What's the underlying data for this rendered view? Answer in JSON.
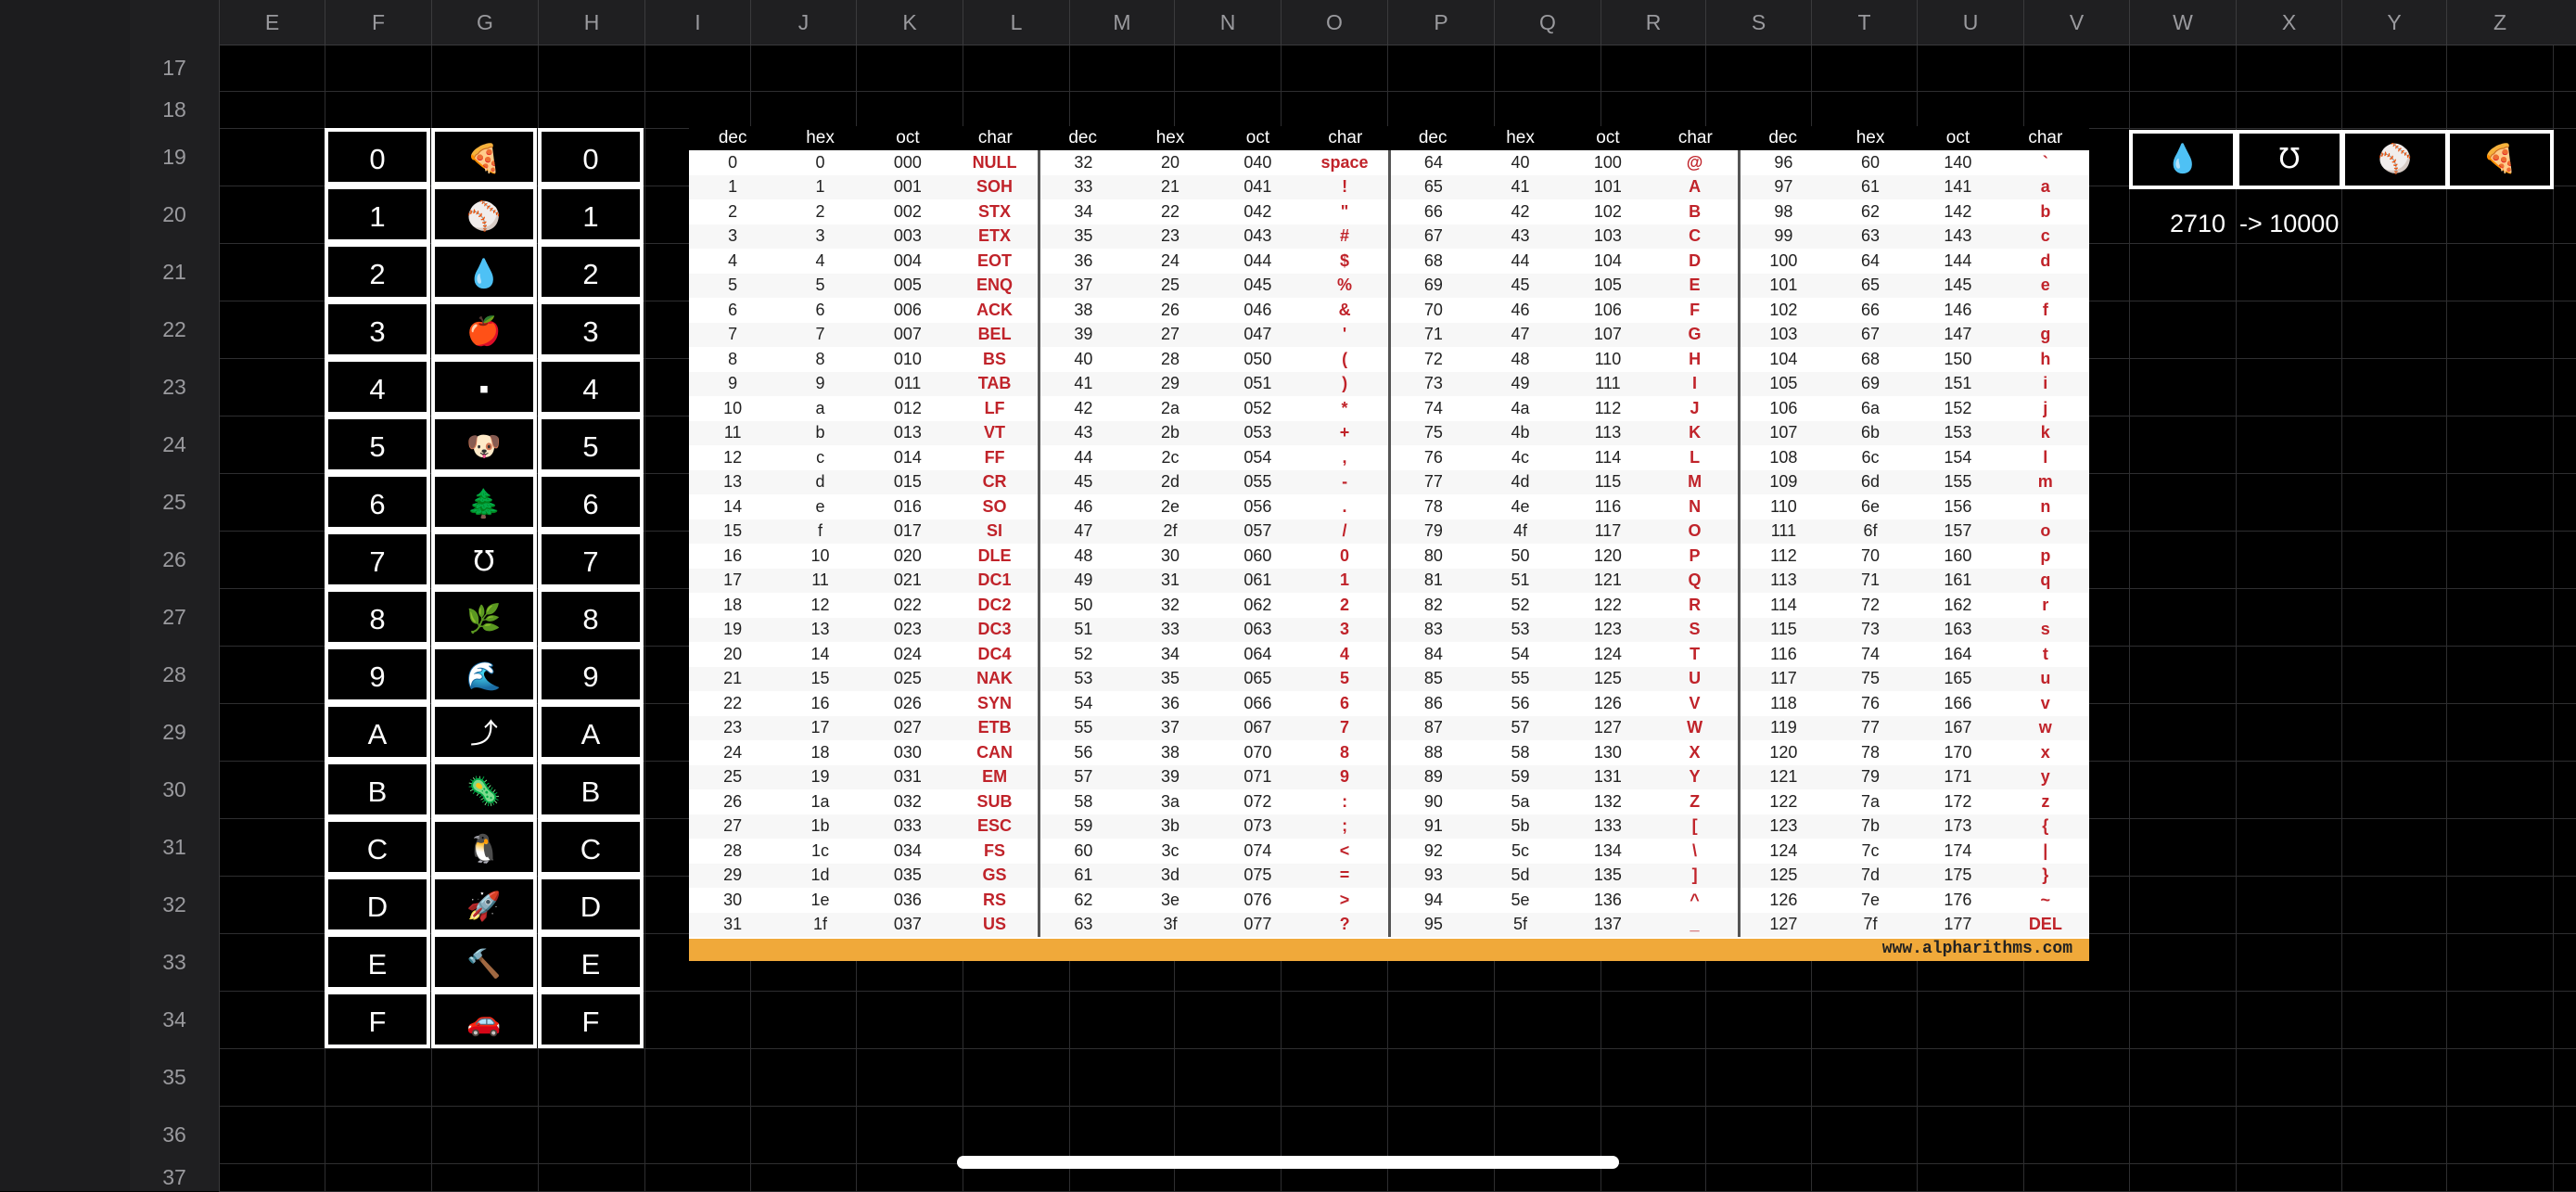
{
  "column_headers": [
    "E",
    "F",
    "G",
    "H",
    "I",
    "J",
    "K",
    "L",
    "M",
    "N",
    "O",
    "P",
    "Q",
    "R",
    "S",
    "T",
    "U",
    "V",
    "W",
    "X",
    "Y",
    "Z"
  ],
  "row_numbers": [
    "17",
    "18",
    "19",
    "20",
    "21",
    "22",
    "23",
    "24",
    "25",
    "26",
    "27",
    "28",
    "29",
    "30",
    "31",
    "32",
    "33",
    "34",
    "35",
    "36",
    "37"
  ],
  "left_table": [
    {
      "left": "0",
      "icon": "🍕",
      "right": "0"
    },
    {
      "left": "1",
      "icon": "⚾",
      "right": "1"
    },
    {
      "left": "2",
      "icon": "💧",
      "right": "2"
    },
    {
      "left": "3",
      "icon": "🍎",
      "right": "3"
    },
    {
      "left": "4",
      "icon": "▪",
      "right": "4"
    },
    {
      "left": "5",
      "icon": "🐶",
      "right": "5"
    },
    {
      "left": "6",
      "icon": "🌲",
      "right": "6"
    },
    {
      "left": "7",
      "icon": "℧",
      "right": "7"
    },
    {
      "left": "8",
      "icon": "🌿",
      "right": "8"
    },
    {
      "left": "9",
      "icon": "🌊",
      "right": "9"
    },
    {
      "left": "A",
      "icon": "⤴",
      "right": "A"
    },
    {
      "left": "B",
      "icon": "🦠",
      "right": "B"
    },
    {
      "left": "C",
      "icon": "🐧",
      "right": "C"
    },
    {
      "left": "D",
      "icon": "🚀",
      "right": "D"
    },
    {
      "left": "E",
      "icon": "🔨",
      "right": "E"
    },
    {
      "left": "F",
      "icon": "🚗",
      "right": "F"
    }
  ],
  "ascii_table": {
    "headers": [
      "dec",
      "hex",
      "oct",
      "char",
      "dec",
      "hex",
      "oct",
      "char",
      "dec",
      "hex",
      "oct",
      "char",
      "dec",
      "hex",
      "oct",
      "char"
    ],
    "rows": [
      [
        "0",
        "0",
        "000",
        "NULL",
        "32",
        "20",
        "040",
        "space",
        "64",
        "40",
        "100",
        "@",
        "96",
        "60",
        "140",
        "`"
      ],
      [
        "1",
        "1",
        "001",
        "SOH",
        "33",
        "21",
        "041",
        "!",
        "65",
        "41",
        "101",
        "A",
        "97",
        "61",
        "141",
        "a"
      ],
      [
        "2",
        "2",
        "002",
        "STX",
        "34",
        "22",
        "042",
        "\"",
        "66",
        "42",
        "102",
        "B",
        "98",
        "62",
        "142",
        "b"
      ],
      [
        "3",
        "3",
        "003",
        "ETX",
        "35",
        "23",
        "043",
        "#",
        "67",
        "43",
        "103",
        "C",
        "99",
        "63",
        "143",
        "c"
      ],
      [
        "4",
        "4",
        "004",
        "EOT",
        "36",
        "24",
        "044",
        "$",
        "68",
        "44",
        "104",
        "D",
        "100",
        "64",
        "144",
        "d"
      ],
      [
        "5",
        "5",
        "005",
        "ENQ",
        "37",
        "25",
        "045",
        "%",
        "69",
        "45",
        "105",
        "E",
        "101",
        "65",
        "145",
        "e"
      ],
      [
        "6",
        "6",
        "006",
        "ACK",
        "38",
        "26",
        "046",
        "&",
        "70",
        "46",
        "106",
        "F",
        "102",
        "66",
        "146",
        "f"
      ],
      [
        "7",
        "7",
        "007",
        "BEL",
        "39",
        "27",
        "047",
        "'",
        "71",
        "47",
        "107",
        "G",
        "103",
        "67",
        "147",
        "g"
      ],
      [
        "8",
        "8",
        "010",
        "BS",
        "40",
        "28",
        "050",
        "(",
        "72",
        "48",
        "110",
        "H",
        "104",
        "68",
        "150",
        "h"
      ],
      [
        "9",
        "9",
        "011",
        "TAB",
        "41",
        "29",
        "051",
        ")",
        "73",
        "49",
        "111",
        "I",
        "105",
        "69",
        "151",
        "i"
      ],
      [
        "10",
        "a",
        "012",
        "LF",
        "42",
        "2a",
        "052",
        "*",
        "74",
        "4a",
        "112",
        "J",
        "106",
        "6a",
        "152",
        "j"
      ],
      [
        "11",
        "b",
        "013",
        "VT",
        "43",
        "2b",
        "053",
        "+",
        "75",
        "4b",
        "113",
        "K",
        "107",
        "6b",
        "153",
        "k"
      ],
      [
        "12",
        "c",
        "014",
        "FF",
        "44",
        "2c",
        "054",
        ",",
        "76",
        "4c",
        "114",
        "L",
        "108",
        "6c",
        "154",
        "l"
      ],
      [
        "13",
        "d",
        "015",
        "CR",
        "45",
        "2d",
        "055",
        "-",
        "77",
        "4d",
        "115",
        "M",
        "109",
        "6d",
        "155",
        "m"
      ],
      [
        "14",
        "e",
        "016",
        "SO",
        "46",
        "2e",
        "056",
        ".",
        "78",
        "4e",
        "116",
        "N",
        "110",
        "6e",
        "156",
        "n"
      ],
      [
        "15",
        "f",
        "017",
        "SI",
        "47",
        "2f",
        "057",
        "/",
        "79",
        "4f",
        "117",
        "O",
        "111",
        "6f",
        "157",
        "o"
      ],
      [
        "16",
        "10",
        "020",
        "DLE",
        "48",
        "30",
        "060",
        "0",
        "80",
        "50",
        "120",
        "P",
        "112",
        "70",
        "160",
        "p"
      ],
      [
        "17",
        "11",
        "021",
        "DC1",
        "49",
        "31",
        "061",
        "1",
        "81",
        "51",
        "121",
        "Q",
        "113",
        "71",
        "161",
        "q"
      ],
      [
        "18",
        "12",
        "022",
        "DC2",
        "50",
        "32",
        "062",
        "2",
        "82",
        "52",
        "122",
        "R",
        "114",
        "72",
        "162",
        "r"
      ],
      [
        "19",
        "13",
        "023",
        "DC3",
        "51",
        "33",
        "063",
        "3",
        "83",
        "53",
        "123",
        "S",
        "115",
        "73",
        "163",
        "s"
      ],
      [
        "20",
        "14",
        "024",
        "DC4",
        "52",
        "34",
        "064",
        "4",
        "84",
        "54",
        "124",
        "T",
        "116",
        "74",
        "164",
        "t"
      ],
      [
        "21",
        "15",
        "025",
        "NAK",
        "53",
        "35",
        "065",
        "5",
        "85",
        "55",
        "125",
        "U",
        "117",
        "75",
        "165",
        "u"
      ],
      [
        "22",
        "16",
        "026",
        "SYN",
        "54",
        "36",
        "066",
        "6",
        "86",
        "56",
        "126",
        "V",
        "118",
        "76",
        "166",
        "v"
      ],
      [
        "23",
        "17",
        "027",
        "ETB",
        "55",
        "37",
        "067",
        "7",
        "87",
        "57",
        "127",
        "W",
        "119",
        "77",
        "167",
        "w"
      ],
      [
        "24",
        "18",
        "030",
        "CAN",
        "56",
        "38",
        "070",
        "8",
        "88",
        "58",
        "130",
        "X",
        "120",
        "78",
        "170",
        "x"
      ],
      [
        "25",
        "19",
        "031",
        "EM",
        "57",
        "39",
        "071",
        "9",
        "89",
        "59",
        "131",
        "Y",
        "121",
        "79",
        "171",
        "y"
      ],
      [
        "26",
        "1a",
        "032",
        "SUB",
        "58",
        "3a",
        "072",
        ":",
        "90",
        "5a",
        "132",
        "Z",
        "122",
        "7a",
        "172",
        "z"
      ],
      [
        "27",
        "1b",
        "033",
        "ESC",
        "59",
        "3b",
        "073",
        ";",
        "91",
        "5b",
        "133",
        "[",
        "123",
        "7b",
        "173",
        "{"
      ],
      [
        "28",
        "1c",
        "034",
        "FS",
        "60",
        "3c",
        "074",
        "<",
        "92",
        "5c",
        "134",
        "\\",
        "124",
        "7c",
        "174",
        "|"
      ],
      [
        "29",
        "1d",
        "035",
        "GS",
        "61",
        "3d",
        "075",
        "=",
        "93",
        "5d",
        "135",
        "]",
        "125",
        "7d",
        "175",
        "}"
      ],
      [
        "30",
        "1e",
        "036",
        "RS",
        "62",
        "3e",
        "076",
        ">",
        "94",
        "5e",
        "136",
        "^",
        "126",
        "7e",
        "176",
        "~"
      ],
      [
        "31",
        "1f",
        "037",
        "US",
        "63",
        "3f",
        "077",
        "?",
        "95",
        "5f",
        "137",
        "_",
        "127",
        "7f",
        "177",
        "DEL"
      ]
    ],
    "footer": "www.alpharithms.com"
  },
  "right_row": [
    {
      "icon": "💧"
    },
    {
      "icon": "℧"
    },
    {
      "icon": "⚾"
    },
    {
      "icon": "🍕"
    }
  ],
  "calc": {
    "value": "2710",
    "result": "-> 10000"
  }
}
